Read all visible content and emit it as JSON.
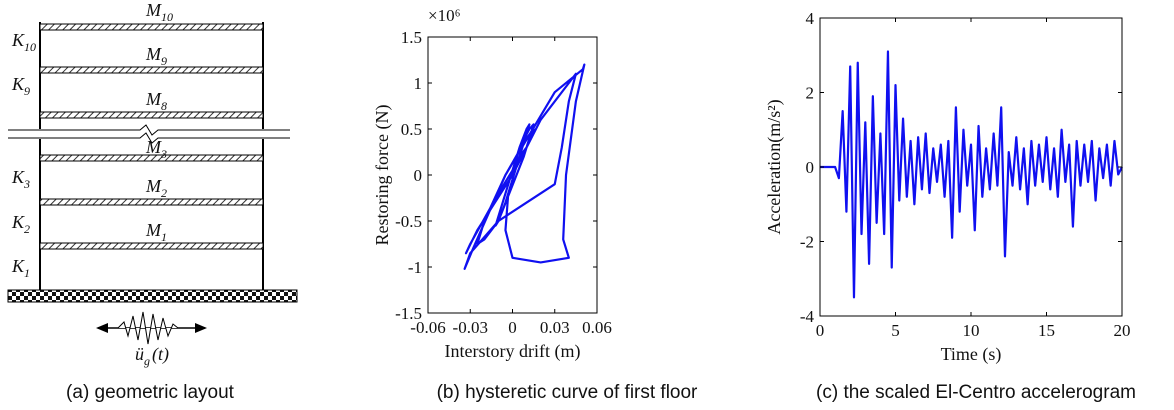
{
  "diagram": {
    "masses": [
      {
        "symbol": "M",
        "index": "10"
      },
      {
        "symbol": "M",
        "index": "9"
      },
      {
        "symbol": "M",
        "index": "8"
      },
      {
        "symbol": "M",
        "index": "3"
      },
      {
        "symbol": "M",
        "index": "2"
      },
      {
        "symbol": "M",
        "index": "1"
      }
    ],
    "stiffnesses": [
      {
        "symbol": "K",
        "index": "10"
      },
      {
        "symbol": "K",
        "index": "9"
      },
      {
        "symbol": "K",
        "index": "3"
      },
      {
        "symbol": "K",
        "index": "2"
      },
      {
        "symbol": "K",
        "index": "1"
      }
    ],
    "ground_motion": {
      "symbol": "ü",
      "index": "g",
      "argument": "(t)"
    },
    "caption": "(a) geometric layout"
  },
  "chart_data": [
    {
      "type": "line",
      "caption": "(b) hysteretic curve of first floor",
      "x_label": "Interstory drift (m)",
      "y_label": "Restoring force (N)",
      "y_multiplier": "×10⁶",
      "color": "#1010f0",
      "xlim": [
        -0.06,
        0.06
      ],
      "xticks": [
        -0.06,
        -0.03,
        0,
        0.03,
        0.06
      ],
      "ylim": [
        -1.5,
        1.5
      ],
      "yticks": [
        -1.5,
        -1,
        -0.5,
        0,
        0.5,
        1,
        1.5
      ],
      "x": [
        0,
        0.005,
        0.01,
        0.012,
        0.005,
        -0.005,
        -0.01,
        -0.012,
        -0.005,
        0.005,
        0.012,
        0.015,
        0.008,
        -0.01,
        -0.02,
        -0.025,
        -0.02,
        -0.005,
        0.01,
        0.015,
        0.01,
        -0.01,
        -0.03,
        -0.033,
        -0.025,
        0,
        0.02,
        0.04,
        0.045,
        0.04,
        0.035,
        0.03,
        0.01,
        -0.01,
        -0.03,
        -0.034,
        -0.028,
        -0.005,
        0.03,
        0.05,
        0.051,
        0.045,
        0.038,
        0.036,
        0.04,
        0.02,
        0,
        -0.005,
        -0.003,
        0.005,
        0.01
      ],
      "values": [
        0,
        0.3,
        0.5,
        0.55,
        0.2,
        -0.3,
        -0.5,
        -0.55,
        -0.2,
        0.3,
        0.5,
        0.55,
        0.2,
        -0.5,
        -0.7,
        -0.75,
        -0.5,
        0,
        0.4,
        0.5,
        0.3,
        -0.2,
        -0.75,
        -0.85,
        -0.6,
        0,
        0.6,
        1.0,
        1.1,
        0.8,
        0.3,
        -0.1,
        -0.3,
        -0.5,
        -0.85,
        -1.02,
        -0.8,
        0,
        0.9,
        1.15,
        1.2,
        0.8,
        0.0,
        -0.7,
        -0.9,
        -0.95,
        -0.9,
        -0.6,
        -0.2,
        0.2,
        0.3
      ]
    },
    {
      "type": "line",
      "caption": "(c) the scaled El-Centro accelerogram",
      "x_label": "Time (s)",
      "y_label": "Acceleration(m/s²)",
      "color": "#1010f0",
      "xlim": [
        0,
        20
      ],
      "xticks": [
        0,
        5,
        10,
        15,
        20
      ],
      "ylim": [
        -4,
        4
      ],
      "yticks": [
        -4,
        -2,
        0,
        2,
        4
      ],
      "x": [
        0,
        0.25,
        0.5,
        0.75,
        1,
        1.25,
        1.5,
        1.75,
        2,
        2.25,
        2.5,
        2.75,
        3,
        3.25,
        3.5,
        3.75,
        4,
        4.25,
        4.5,
        4.75,
        5,
        5.25,
        5.5,
        5.75,
        6,
        6.25,
        6.5,
        6.75,
        7,
        7.25,
        7.5,
        7.75,
        8,
        8.25,
        8.5,
        8.75,
        9,
        9.25,
        9.5,
        9.75,
        10,
        10.25,
        10.5,
        10.75,
        11,
        11.25,
        11.5,
        11.75,
        12,
        12.25,
        12.5,
        12.75,
        13,
        13.25,
        13.5,
        13.75,
        14,
        14.25,
        14.5,
        14.75,
        15,
        15.25,
        15.5,
        15.75,
        16,
        16.25,
        16.5,
        16.75,
        17,
        17.25,
        17.5,
        17.75,
        18,
        18.25,
        18.5,
        18.75,
        19,
        19.25,
        19.5,
        19.75,
        20
      ],
      "values": [
        0,
        0,
        0,
        0,
        0,
        -0.3,
        1.5,
        -1.2,
        2.7,
        -3.5,
        2.8,
        -1.8,
        1.2,
        -2.6,
        1.9,
        -1.5,
        0.9,
        -1.8,
        3.1,
        -2.7,
        2.2,
        -0.9,
        1.3,
        -0.8,
        0.7,
        -1.0,
        0.8,
        -0.6,
        0.9,
        -0.7,
        0.5,
        -0.4,
        0.6,
        -0.8,
        0.7,
        -1.9,
        1.6,
        -1.2,
        1.0,
        -0.5,
        0.6,
        -1.7,
        1.1,
        -0.8,
        0.5,
        -0.6,
        0.9,
        -0.5,
        1.6,
        -2.4,
        0.4,
        -0.5,
        0.8,
        -0.6,
        0.5,
        -1.0,
        0.7,
        -0.5,
        0.6,
        -0.4,
        0.8,
        -0.6,
        0.5,
        -0.8,
        1.0,
        -0.4,
        0.6,
        -1.6,
        0.7,
        -0.5,
        0.6,
        -0.4,
        0.7,
        -0.9,
        0.5,
        -0.3,
        0.6,
        -0.5,
        0.7,
        -0.2,
        0
      ]
    }
  ]
}
